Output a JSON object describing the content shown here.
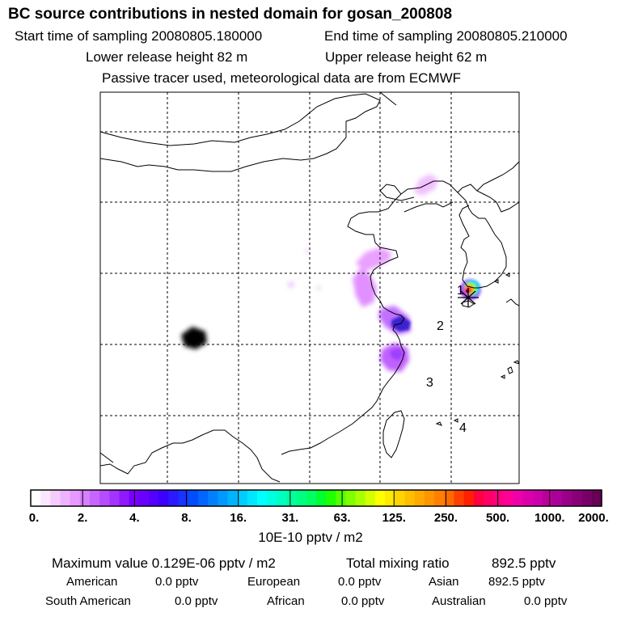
{
  "header": {
    "title": "BC  source contributions in nested domain for gosan_200808",
    "start_label": "Start time of sampling 20080805.180000",
    "end_label": "End time of sampling 20080805.210000",
    "lower_label": "Lower release height   82 m",
    "upper_label": "Upper release height   62 m",
    "note": "Passive tracer used, meteorological data are from ECMWF"
  },
  "chart_data": {
    "type": "heatmap",
    "title": "BC  source contributions in nested domain for gosan_200808",
    "colorbar": {
      "ticks": [
        "0.",
        "2.",
        "4.",
        "8.",
        "16.",
        "31.",
        "63.",
        "125.",
        "250.",
        "500.",
        "1000.",
        "2000."
      ],
      "units": "10E-10 pptv / m2",
      "colors": [
        "#ffffff",
        "#fbe6ff",
        "#f5ccff",
        "#eeb3ff",
        "#e699ff",
        "#d680ff",
        "#c666ff",
        "#b54dff",
        "#a333ff",
        "#9019ff",
        "#7a00ff",
        "#6a00ff",
        "#5500ff",
        "#3d00ff",
        "#2b1aff",
        "#1a33ff",
        "#004dff",
        "#0066ff",
        "#0080ff",
        "#0099ff",
        "#00b3ff",
        "#00ccff",
        "#00e6ff",
        "#00ffff",
        "#00ffe0",
        "#00ffc0",
        "#00ff9f",
        "#00ff80",
        "#00ff60",
        "#00ff30",
        "#20ff00",
        "#55ff00",
        "#80ff00",
        "#aaff00",
        "#d4ff00",
        "#ffff00",
        "#ffea00",
        "#ffd400",
        "#ffbf00",
        "#ffaa00",
        "#ff9500",
        "#ff8000",
        "#ff6a00",
        "#ff4000",
        "#ff2000",
        "#ff0040",
        "#ff0066",
        "#ff0080",
        "#ff0099",
        "#ee00aa",
        "#dd00aa",
        "#cc00aa",
        "#bb0099",
        "#aa0099",
        "#990088",
        "#880077",
        "#770066",
        "#660055"
      ]
    },
    "site_labels": [
      "1",
      "2",
      "3",
      "4"
    ]
  },
  "footer": {
    "max_label": "Maximum value  0.129E-06 pptv / m2",
    "total_label": "Total mixing ratio",
    "total_value": "892.5 pptv",
    "american_label": "American",
    "american_value": "0.0 pptv",
    "european_label": "European",
    "european_value": "0.0 pptv",
    "asian_label": "Asian",
    "asian_value": "892.5 pptv",
    "south_american_label": "South American",
    "south_american_value": "0.0 pptv",
    "african_label": "African",
    "african_value": "0.0 pptv",
    "australian_label": "Australian",
    "australian_value": "0.0 pptv"
  }
}
